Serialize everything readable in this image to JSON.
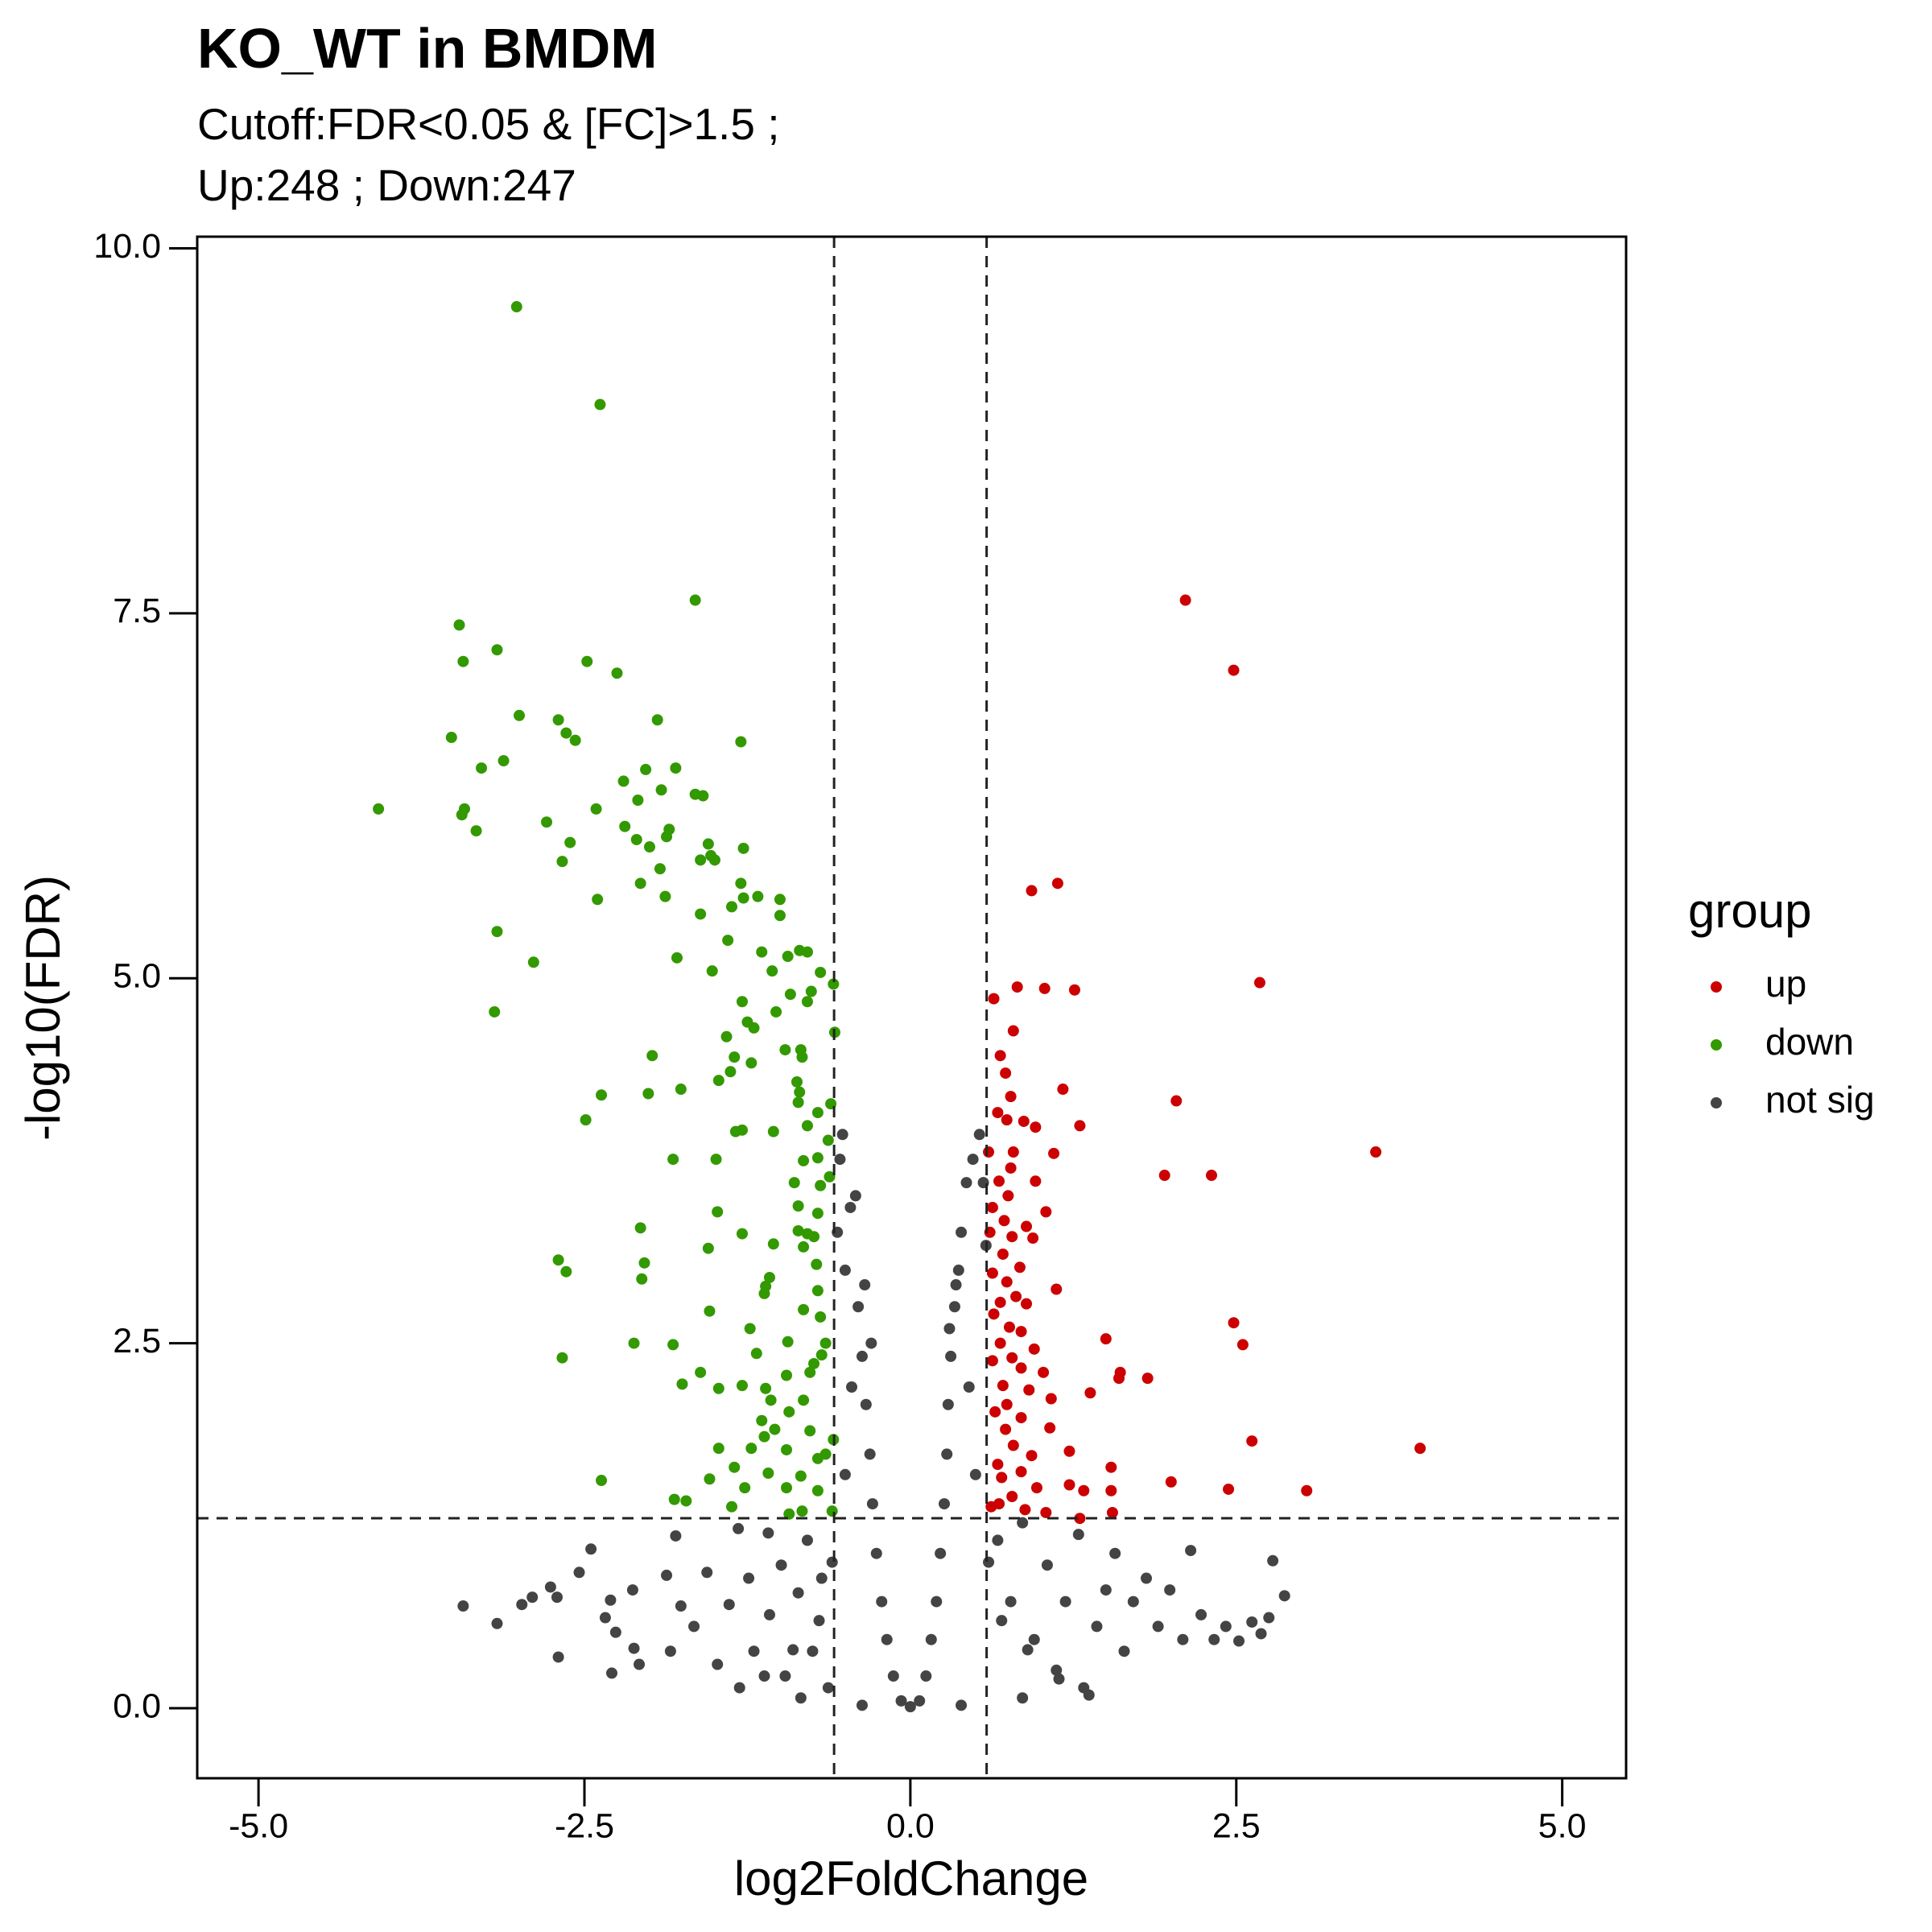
{
  "chart_data": {
    "type": "scatter",
    "title": "KO_WT in BMDM",
    "subtitle": [
      "Cutoff:FDR<0.05 & [FC]>1.5 ;",
      "Up:248 ; Down:247"
    ],
    "x_label": "log2FoldChange",
    "y_label": "-log10(FDR)",
    "legend_title": "group",
    "legend_position": "right",
    "grid": false,
    "xlim": [
      -5.47,
      5.49
    ],
    "ylim": [
      -0.48,
      10.08
    ],
    "xticks": [
      {
        "value": -5,
        "label": "-5.0"
      },
      -2.5,
      {
        "value": 0,
        "label": "0.0"
      },
      2.5,
      {
        "value": 5,
        "label": "5.0"
      }
    ],
    "yticks": [
      {
        "value": 0,
        "label": "0.0"
      },
      2.5,
      {
        "value": 5,
        "label": "5.0"
      },
      7.5,
      {
        "value": 10,
        "label": "10.0"
      }
    ],
    "cutoff_lines": {
      "x": [
        -0.585,
        0.585
      ],
      "y": 1.301
    },
    "series": [
      {
        "name": "up",
        "color": "#cc0000",
        "x": [
          2.11,
          2.48,
          1.13,
          0.93,
          2.68,
          0.82,
          1.03,
          1.26,
          0.64,
          0.79,
          0.69,
          0.73,
          1.17,
          0.77,
          2.04,
          0.67,
          0.74,
          0.87,
          0.96,
          1.3,
          3.57,
          0.6,
          0.79,
          1.1,
          1.95,
          2.31,
          0.77,
          0.68,
          0.96,
          0.75,
          0.63,
          1.04,
          0.72,
          0.89,
          0.61,
          0.78,
          0.94,
          0.71,
          0.84,
          0.63,
          0.74,
          1.12,
          0.81,
          0.69,
          0.89,
          0.64,
          0.76,
          2.48,
          0.85,
          1.5,
          2.55,
          0.69,
          0.95,
          0.78,
          0.63,
          0.85,
          1.02,
          1.61,
          1.6,
          1.82,
          0.71,
          0.91,
          1.38,
          0.74,
          1.08,
          0.65,
          0.85,
          1.07,
          0.73,
          2.62,
          3.91,
          0.79,
          1.22,
          0.93,
          0.67,
          1.54,
          0.85,
          0.7,
          2.0,
          1.22,
          2.44,
          3.04,
          0.97,
          1.33,
          1.54,
          0.78,
          0.68,
          1.04,
          1.55,
          1.3,
          0.88,
          0.62
        ],
        "values": [
          7.59,
          7.11,
          5.65,
          5.6,
          4.97,
          4.94,
          4.93,
          4.92,
          4.86,
          4.64,
          4.47,
          4.35,
          4.24,
          4.19,
          4.16,
          4.08,
          4.03,
          4.02,
          3.98,
          3.99,
          3.81,
          3.81,
          3.81,
          3.8,
          3.65,
          3.65,
          3.7,
          3.61,
          3.61,
          3.51,
          3.43,
          3.4,
          3.34,
          3.3,
          3.26,
          3.23,
          3.22,
          3.11,
          3.02,
          2.98,
          2.92,
          2.87,
          2.82,
          2.78,
          2.77,
          2.7,
          2.61,
          2.64,
          2.58,
          2.53,
          2.49,
          2.5,
          2.46,
          2.4,
          2.38,
          2.33,
          2.3,
          2.3,
          2.26,
          2.26,
          2.21,
          2.18,
          2.16,
          2.08,
          2.12,
          2.03,
          1.99,
          1.92,
          1.91,
          1.83,
          1.78,
          1.8,
          1.76,
          1.73,
          1.67,
          1.65,
          1.62,
          1.58,
          1.55,
          1.53,
          1.5,
          1.49,
          1.51,
          1.49,
          1.49,
          1.45,
          1.4,
          1.34,
          1.34,
          1.3,
          1.36,
          1.38
        ]
      },
      {
        "name": "down",
        "color": "#339900",
        "x": [
          -3.02,
          -2.38,
          -1.65,
          -3.46,
          -3.43,
          -3.17,
          -2.48,
          -2.25,
          -3.0,
          -3.52,
          -2.7,
          -1.94,
          -2.64,
          -2.57,
          -1.3,
          -3.12,
          -3.29,
          -2.03,
          -1.8,
          -2.2,
          -1.91,
          -1.65,
          -1.59,
          -4.08,
          -3.42,
          -3.44,
          -2.41,
          -2.09,
          -2.79,
          -3.33,
          -2.19,
          -1.85,
          -1.87,
          -2.1,
          -2.0,
          -2.61,
          -1.55,
          -1.28,
          -2.67,
          -1.53,
          -1.61,
          -1.5,
          -1.92,
          -2.07,
          -1.3,
          -2.4,
          -1.88,
          -1.28,
          -1.17,
          -1.37,
          -1.0,
          -1.0,
          -1.61,
          -1.4,
          -3.17,
          -1.14,
          -0.85,
          -0.79,
          -1.79,
          -0.94,
          -2.89,
          -1.06,
          -1.52,
          -0.69,
          -0.59,
          -0.76,
          -0.92,
          -1.29,
          -0.79,
          -3.19,
          -1.03,
          -1.25,
          -1.2,
          -0.58,
          -1.41,
          -0.84,
          -0.96,
          -1.98,
          -1.35,
          -0.83,
          -1.22,
          -1.47,
          -0.87,
          -1.38,
          -0.85,
          -1.76,
          -2.37,
          -2.01,
          -0.86,
          -0.61,
          -0.71,
          -0.79,
          -2.49,
          -1.05,
          -1.34,
          -1.29,
          -0.63,
          -1.82,
          -1.49,
          -0.71,
          -0.82,
          -0.62,
          -0.89,
          -0.69,
          -0.86,
          -0.71,
          -1.48,
          -0.86,
          -2.07,
          -1.29,
          -0.79,
          -0.74,
          -1.55,
          -0.82,
          -1.05,
          -2.7,
          -2.04,
          -0.72,
          -2.64,
          -1.08,
          -2.06,
          -1.11,
          -1.12,
          -0.71,
          -0.82,
          -1.54,
          -0.69,
          -1.23,
          -0.94,
          -2.12,
          -1.82,
          -0.65,
          -2.67,
          -0.68,
          -0.74,
          -1.18,
          -1.61,
          -0.95,
          -0.77,
          -1.75,
          -1.29,
          -1.47,
          -0.82,
          -1.11,
          -1.07,
          -0.93,
          -1.14,
          -0.77,
          -1.04,
          -1.12,
          -0.59,
          -1.47,
          -1.22,
          -0.95,
          -0.65,
          -0.71,
          -1.35,
          -1.09,
          -1.54,
          -2.37,
          -0.84,
          -0.71,
          -0.95,
          -1.27,
          -1.81,
          -1.72,
          -1.37,
          -0.83,
          -0.6,
          -0.93
        ],
        "values": [
          9.6,
          8.93,
          7.59,
          7.42,
          7.17,
          7.25,
          7.17,
          7.09,
          6.8,
          6.65,
          6.77,
          6.77,
          6.68,
          6.63,
          6.62,
          6.49,
          6.44,
          6.43,
          6.44,
          6.35,
          6.29,
          6.26,
          6.25,
          6.16,
          6.16,
          6.12,
          6.16,
          6.22,
          6.07,
          6.01,
          6.04,
          6.02,
          5.97,
          5.95,
          5.9,
          5.93,
          5.92,
          5.89,
          5.8,
          5.84,
          5.81,
          5.81,
          5.75,
          5.65,
          5.65,
          5.54,
          5.56,
          5.55,
          5.56,
          5.49,
          5.54,
          5.43,
          5.44,
          5.26,
          5.32,
          5.18,
          5.19,
          5.18,
          5.14,
          5.15,
          5.11,
          5.05,
          5.05,
          5.04,
          4.96,
          4.91,
          4.89,
          4.84,
          4.84,
          4.77,
          4.77,
          4.7,
          4.66,
          4.63,
          4.6,
          4.51,
          4.51,
          4.47,
          4.46,
          4.46,
          4.42,
          4.3,
          4.29,
          4.36,
          4.22,
          4.24,
          4.2,
          4.21,
          4.15,
          4.14,
          4.08,
          3.99,
          4.03,
          3.95,
          3.95,
          3.96,
          3.89,
          3.76,
          3.76,
          3.77,
          3.75,
          3.64,
          3.6,
          3.58,
          3.44,
          3.39,
          3.4,
          3.27,
          3.29,
          3.25,
          3.25,
          3.23,
          3.15,
          3.16,
          3.18,
          3.07,
          3.05,
          3.04,
          2.99,
          2.95,
          2.94,
          2.89,
          2.84,
          2.86,
          2.73,
          2.72,
          2.68,
          2.6,
          2.51,
          2.5,
          2.49,
          2.5,
          2.4,
          2.42,
          2.36,
          2.43,
          2.3,
          2.28,
          2.3,
          2.22,
          2.21,
          2.19,
          2.11,
          2.19,
          2.11,
          2.03,
          1.97,
          1.9,
          1.91,
          1.86,
          1.84,
          1.78,
          1.78,
          1.77,
          1.74,
          1.71,
          1.65,
          1.61,
          1.57,
          1.56,
          1.59,
          1.49,
          1.51,
          1.51,
          1.43,
          1.42,
          1.38,
          1.35,
          1.35,
          1.33
        ]
      },
      {
        "name": "not sig",
        "color": "#444444",
        "x": [
          -3.43,
          -3.17,
          -2.98,
          -2.9,
          -2.76,
          -2.71,
          -2.54,
          -2.45,
          -2.7,
          -2.34,
          -2.3,
          -2.26,
          -2.29,
          -2.13,
          -2.12,
          -2.08,
          -1.87,
          -1.8,
          -1.76,
          -1.84,
          -1.66,
          -1.56,
          -1.48,
          -1.39,
          -1.32,
          -1.24,
          -1.2,
          -1.09,
          -1.08,
          -0.99,
          -0.96,
          -0.86,
          -0.79,
          -0.75,
          -0.68,
          -0.63,
          -0.56,
          -0.54,
          -0.52,
          -0.5,
          -0.46,
          -0.42,
          -0.4,
          -0.37,
          -0.34,
          -0.31,
          -0.29,
          -0.26,
          -0.22,
          -0.18,
          -0.13,
          -0.07,
          0,
          0.07,
          0.12,
          0.16,
          0.2,
          0.23,
          0.26,
          0.28,
          0.29,
          0.31,
          0.34,
          0.37,
          0.39,
          0.43,
          0.48,
          0.53,
          0.56,
          0.58,
          0.67,
          0.77,
          0.86,
          0.95,
          1.05,
          1.12,
          1.19,
          1.29,
          1.37,
          1.43,
          1.5,
          1.57,
          1.64,
          1.71,
          1.81,
          1.9,
          1.99,
          2.09,
          2.15,
          2.23,
          2.33,
          2.42,
          2.52,
          2.62,
          2.69,
          2.78,
          2.87,
          2.75,
          -1.31,
          -0.84,
          -0.37,
          0.39,
          0.86,
          1.33,
          -1.12,
          1.14,
          -0.45,
          -0.5,
          -0.6,
          -0.7,
          -0.9,
          0.45,
          0.5,
          0.6,
          0.7,
          0.9,
          -0.3,
          0.3,
          -0.35,
          0.35
        ],
        "values": [
          0.7,
          0.58,
          0.71,
          0.76,
          0.83,
          0.76,
          0.93,
          1.09,
          0.35,
          0.62,
          0.74,
          0.52,
          0.24,
          0.81,
          0.41,
          0.3,
          0.91,
          1.18,
          0.7,
          0.39,
          0.56,
          0.93,
          0.3,
          0.71,
          1.23,
          0.89,
          0.39,
          1.2,
          0.64,
          0.98,
          0.22,
          0.79,
          1.15,
          0.39,
          0.89,
          0.14,
          3.26,
          3.76,
          3.93,
          3.0,
          3.43,
          3.51,
          2.75,
          2.41,
          2.08,
          1.74,
          1.4,
          1.06,
          0.73,
          0.47,
          0.22,
          0.05,
          0.01,
          0.05,
          0.22,
          0.47,
          0.73,
          1.06,
          1.4,
          1.74,
          2.08,
          2.41,
          2.75,
          3.0,
          3.26,
          3.6,
          3.76,
          3.93,
          3.6,
          3.17,
          1.15,
          0.73,
          1.27,
          0.47,
          0.98,
          0.26,
          0.73,
          1.19,
          0.09,
          0.56,
          0.81,
          1.06,
          0.39,
          0.73,
          0.89,
          0.56,
          0.81,
          0.47,
          1.08,
          0.64,
          0.47,
          0.56,
          0.46,
          0.59,
          0.51,
          1.01,
          0.77,
          0.62,
          0.14,
          0.07,
          0.02,
          0.02,
          0.07,
          0.14,
          0.22,
          0.2,
          2.2,
          1.6,
          1.0,
          0.6,
          0.4,
          2.2,
          1.6,
          1.0,
          0.6,
          0.4,
          2.5,
          2.6,
          2.9,
          2.9
        ]
      }
    ]
  }
}
